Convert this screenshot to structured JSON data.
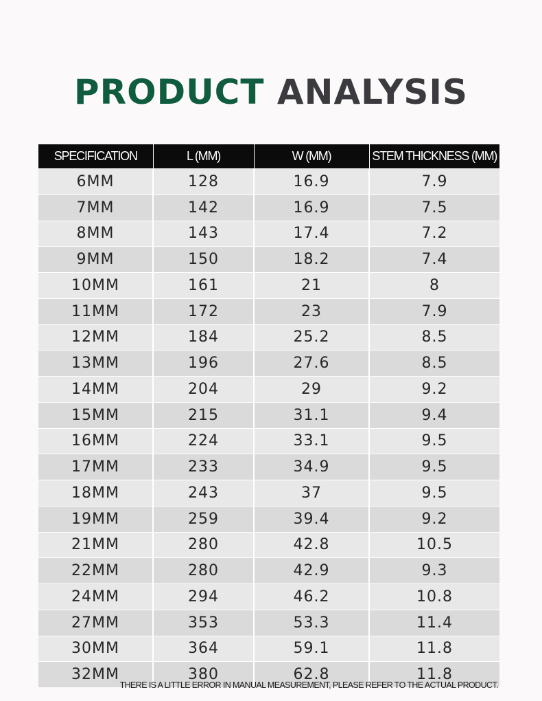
{
  "title": {
    "word1": "PRODUCT",
    "word2": "ANALYSIS"
  },
  "table": {
    "headers": [
      "SPECIFICATION",
      "L (MM)",
      "W (MM)",
      "STEM THICKNESS (MM)"
    ],
    "rows": [
      [
        "6MM",
        "128",
        "16.9",
        "7.9"
      ],
      [
        "7MM",
        "142",
        "16.9",
        "7.5"
      ],
      [
        "8MM",
        "143",
        "17.4",
        "7.2"
      ],
      [
        "9MM",
        "150",
        "18.2",
        "7.4"
      ],
      [
        "10MM",
        "161",
        "21",
        "8"
      ],
      [
        "11MM",
        "172",
        "23",
        "7.9"
      ],
      [
        "12MM",
        "184",
        "25.2",
        "8.5"
      ],
      [
        "13MM",
        "196",
        "27.6",
        "8.5"
      ],
      [
        "14MM",
        "204",
        "29",
        "9.2"
      ],
      [
        "15MM",
        "215",
        "31.1",
        "9.4"
      ],
      [
        "16MM",
        "224",
        "33.1",
        "9.5"
      ],
      [
        "17MM",
        "233",
        "34.9",
        "9.5"
      ],
      [
        "18MM",
        "243",
        "37",
        "9.5"
      ],
      [
        "19MM",
        "259",
        "39.4",
        "9.2"
      ],
      [
        "21MM",
        "280",
        "42.8",
        "10.5"
      ],
      [
        "22MM",
        "280",
        "42.9",
        "9.3"
      ],
      [
        "24MM",
        "294",
        "46.2",
        "10.8"
      ],
      [
        "27MM",
        "353",
        "53.3",
        "11.4"
      ],
      [
        "30MM",
        "364",
        "59.1",
        "11.8"
      ],
      [
        "32MM",
        "380",
        "62.8",
        "11.8"
      ]
    ]
  },
  "note": "THERE IS A LITTLE ERROR IN MANUAL MEASUREMENT, PLEASE REFER TO THE ACTUAL PRODUCT."
}
